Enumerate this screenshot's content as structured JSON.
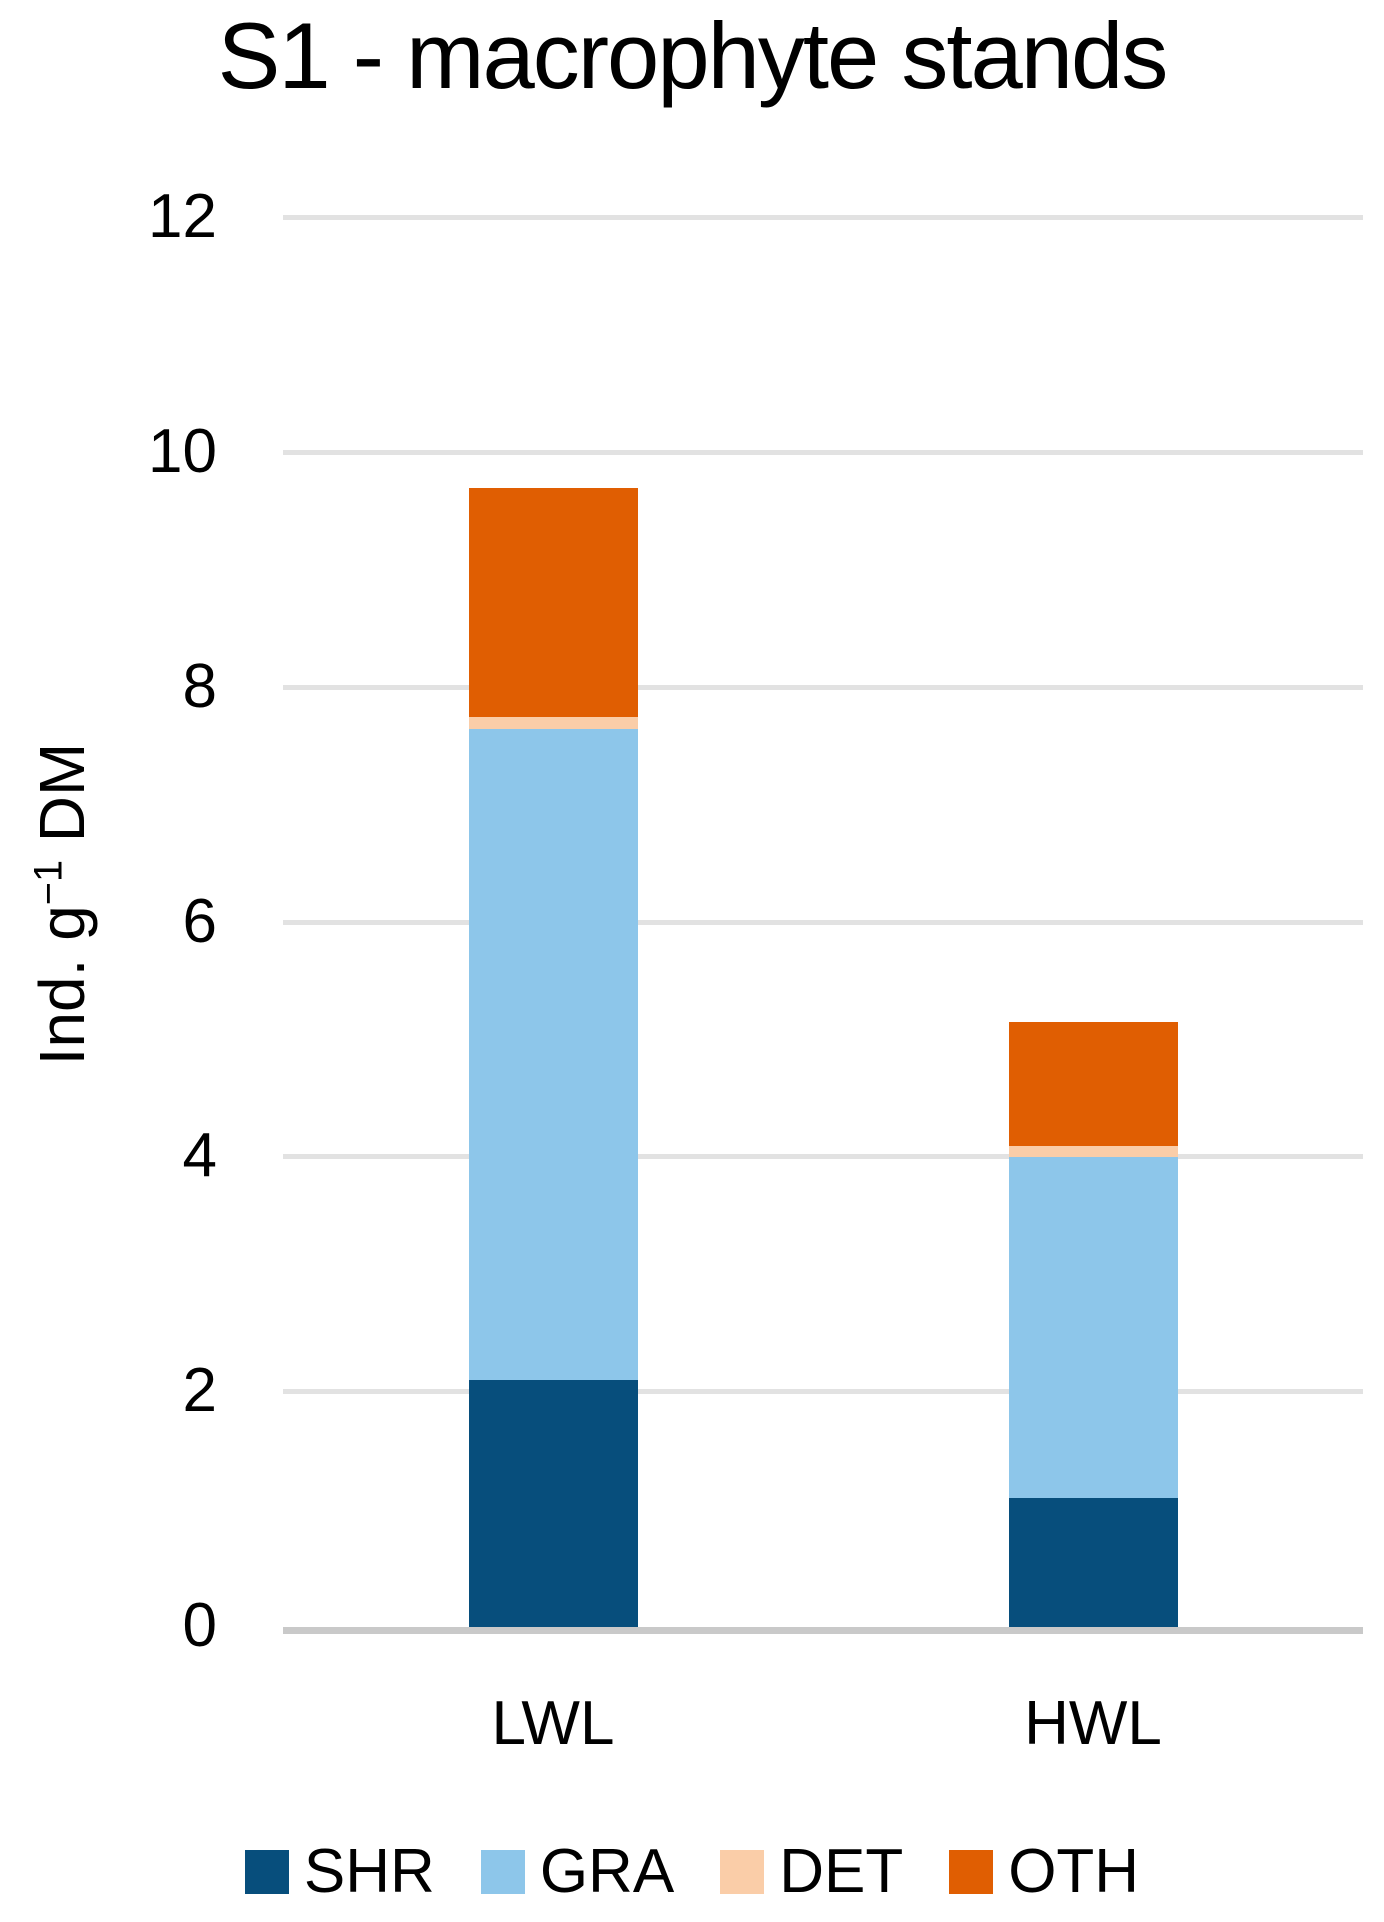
{
  "title": "S1 - macrophyte stands",
  "y_axis": {
    "label": "Ind. g⁻¹ DM",
    "label_parts": {
      "pre": "Ind. g",
      "sup": "−1",
      "post": " DM"
    }
  },
  "chart_data": {
    "type": "bar",
    "stacked": true,
    "title": "S1 - macrophyte stands",
    "xlabel": "",
    "ylabel": "Ind. g⁻¹ DM",
    "categories": [
      "LWL",
      "HWL"
    ],
    "series": [
      {
        "name": "SHR",
        "color": "#074E7C",
        "values": [
          2.1,
          1.1
        ]
      },
      {
        "name": "GRA",
        "color": "#8DC6EA",
        "values": [
          5.55,
          2.9
        ]
      },
      {
        "name": "DET",
        "color": "#FACDA8",
        "values": [
          0.1,
          0.1
        ]
      },
      {
        "name": "OTH",
        "color": "#E05E02",
        "values": [
          1.95,
          1.05
        ]
      }
    ],
    "stack_totals": [
      9.7,
      5.15
    ],
    "ylim": [
      0,
      12
    ],
    "yticks": [
      0,
      2,
      4,
      6,
      8,
      10,
      12
    ],
    "grid": true,
    "gridline_color": "#e2e2e2",
    "baseline_color": "#c9c9c9",
    "legend_position": "bottom",
    "legend_entries": [
      "SHR",
      "GRA",
      "DET",
      "OTH"
    ]
  }
}
